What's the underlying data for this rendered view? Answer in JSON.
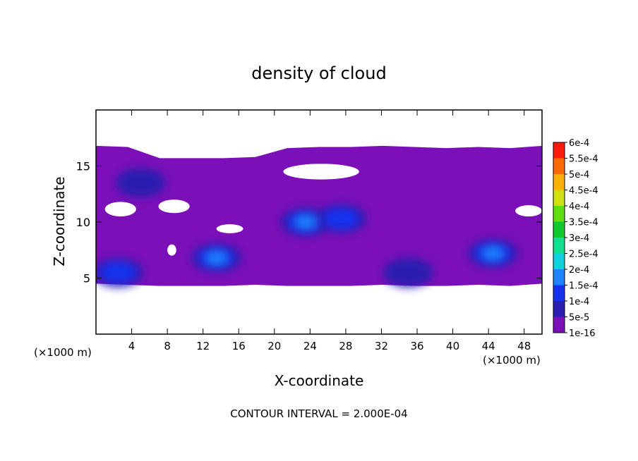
{
  "chart_data": {
    "type": "heatmap",
    "title": "density of cloud",
    "xlabel": "X-coordinate",
    "ylabel": "Z-coordinate",
    "x_unit_left": "(×1000 m)",
    "x_unit_right": "(×1000 m)",
    "xlim": [
      0,
      50
    ],
    "ylim": [
      0,
      20
    ],
    "x_ticks": [
      4,
      8,
      12,
      16,
      20,
      24,
      28,
      32,
      36,
      40,
      44,
      48
    ],
    "y_ticks": [
      5,
      10,
      15
    ],
    "footer": "CONTOUR INTERVAL = 2.000E-04",
    "colorbar": {
      "levels": [
        "1e-16",
        "5e-5",
        "1e-4",
        "1.5e-4",
        "2e-4",
        "2.5e-4",
        "3e-4",
        "3.5e-4",
        "4e-4",
        "4.5e-4",
        "5e-4",
        "5.5e-4",
        "6e-4"
      ],
      "colors": [
        "#7b10b8",
        "#2a1fb0",
        "#1432ee",
        "#1f82ff",
        "#10d0e0",
        "#10e090",
        "#10c830",
        "#60dd10",
        "#d0e010",
        "#ffb000",
        "#ff6a00",
        "#ff1a10",
        "#ff9a9a"
      ]
    },
    "cloud": {
      "base_z": [
        4.5,
        4.4,
        4.3,
        4.3,
        4.3,
        4.4,
        4.3,
        4.3,
        4.3,
        4.4,
        4.3,
        4.3,
        4.4,
        4.3,
        4.5
      ],
      "top_z": [
        16.8,
        16.7,
        15.7,
        15.7,
        15.7,
        15.8,
        16.6,
        16.7,
        16.7,
        16.8,
        16.7,
        16.6,
        16.7,
        16.6,
        16.8
      ],
      "cores": [
        {
          "x": 2.5,
          "z": 5.5,
          "level": 2
        },
        {
          "x": 13.5,
          "z": 6.8,
          "level": 3
        },
        {
          "x": 23.5,
          "z": 10.0,
          "level": 3
        },
        {
          "x": 27.5,
          "z": 10.3,
          "level": 2
        },
        {
          "x": 44.5,
          "z": 7.2,
          "level": 3
        },
        {
          "x": 35.0,
          "z": 5.5,
          "level": 1
        },
        {
          "x": 5.0,
          "z": 13.5,
          "level": 1
        }
      ],
      "clear_patches": [
        {
          "x": [
            1.0,
            4.5
          ],
          "z": [
            10.5,
            11.8
          ]
        },
        {
          "x": [
            7.0,
            10.5
          ],
          "z": [
            10.8,
            12.0
          ]
        },
        {
          "x": [
            21.0,
            29.5
          ],
          "z": [
            13.8,
            15.2
          ]
        },
        {
          "x": [
            13.5,
            16.5
          ],
          "z": [
            9.0,
            9.8
          ]
        },
        {
          "x": [
            47.0,
            50.0
          ],
          "z": [
            10.5,
            11.5
          ]
        },
        {
          "x": [
            8.0,
            9.0
          ],
          "z": [
            7.0,
            8.0
          ]
        }
      ]
    }
  }
}
